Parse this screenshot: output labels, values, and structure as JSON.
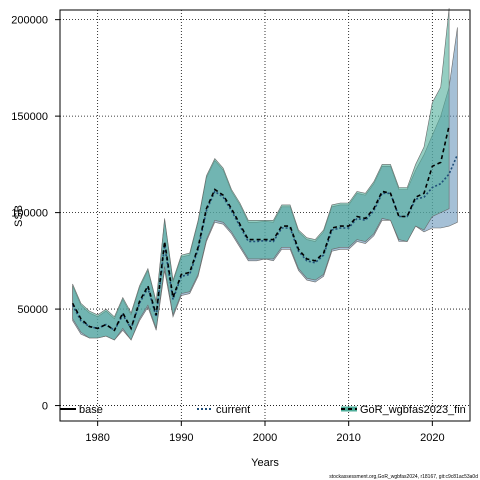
{
  "chart_data": {
    "type": "area",
    "xlabel": "Years",
    "ylabel": "SSB",
    "xlim": [
      1975.5,
      2024.5
    ],
    "ylim": [
      -8000,
      205000
    ],
    "x_ticks": [
      1980,
      1990,
      2000,
      2010,
      2020
    ],
    "x_tick_labels": [
      "1980",
      "1990",
      "2000",
      "2010",
      "2020"
    ],
    "y_ticks": [
      0,
      50000,
      100000,
      150000,
      200000
    ],
    "y_tick_labels": [
      "0",
      "50000",
      "100000",
      "150000",
      "200000"
    ],
    "grid": true,
    "legend_position": "bottom",
    "caption": "stockassessment.org,GoR_wgbfas2024, r18167, git:c9c81ac53a0d",
    "series": [
      {
        "name": "base",
        "color": "#000000",
        "line_style": "solid",
        "x": [],
        "y": [],
        "upper": [],
        "lower": []
      },
      {
        "name": "current",
        "color": "#1f4e79",
        "band_color": "#5b8db5",
        "line_style": "dotted",
        "x": [
          1977,
          1978,
          1979,
          1980,
          1981,
          1982,
          1983,
          1984,
          1985,
          1986,
          1987,
          1988,
          1989,
          1990,
          1991,
          1992,
          1993,
          1994,
          1995,
          1996,
          1997,
          1998,
          1999,
          2000,
          2001,
          2002,
          2003,
          2004,
          2005,
          2006,
          2007,
          2008,
          2009,
          2010,
          2011,
          2012,
          2013,
          2014,
          2015,
          2016,
          2017,
          2018,
          2019,
          2020,
          2021,
          2022,
          2023
        ],
        "y": [
          52000,
          44000,
          41000,
          40000,
          42000,
          39000,
          47000,
          40000,
          53000,
          61000,
          46000,
          83000,
          55000,
          67000,
          68000,
          81000,
          101000,
          111000,
          108000,
          101000,
          93000,
          85000,
          85000,
          85500,
          85000,
          92000,
          92000,
          80000,
          75000,
          74000,
          78000,
          91000,
          92000,
          92000,
          97000,
          96000,
          101000,
          110000,
          110000,
          98000,
          98000,
          107000,
          108000,
          113000,
          115000,
          120000,
          130000
        ],
        "upper": [
          62000,
          52000,
          48000,
          46000,
          49000,
          45000,
          55000,
          47000,
          61000,
          70000,
          53000,
          96000,
          64000,
          77000,
          78000,
          95000,
          118000,
          127000,
          122000,
          111000,
          104000,
          95000,
          95000,
          95500,
          95000,
          103000,
          103000,
          90000,
          86000,
          85000,
          90000,
          103000,
          104000,
          104000,
          110000,
          109000,
          115000,
          124000,
          124000,
          112000,
          112000,
          122000,
          130000,
          140000,
          150000,
          165000,
          196000
        ],
        "lower": [
          44000,
          37000,
          35000,
          35000,
          36000,
          34000,
          39000,
          34000,
          44000,
          51000,
          39000,
          70000,
          46000,
          57000,
          58000,
          67000,
          85000,
          95000,
          94000,
          89000,
          82000,
          75000,
          75000,
          76000,
          75000,
          81000,
          81000,
          70000,
          65000,
          64000,
          67000,
          80000,
          81000,
          81000,
          85000,
          84000,
          88000,
          96000,
          96000,
          85000,
          85000,
          93000,
          90000,
          92000,
          92000,
          93000,
          95000
        ]
      },
      {
        "name": "GoR_wgbfas2023_fin",
        "color": "#0d5c4a",
        "band_color": "#4fae9a",
        "line_style": "dashed",
        "x": [
          1977,
          1978,
          1979,
          1980,
          1981,
          1982,
          1983,
          1984,
          1985,
          1986,
          1987,
          1988,
          1989,
          1990,
          1991,
          1992,
          1993,
          1994,
          1995,
          1996,
          1997,
          1998,
          1999,
          2000,
          2001,
          2002,
          2003,
          2004,
          2005,
          2006,
          2007,
          2008,
          2009,
          2010,
          2011,
          2012,
          2013,
          2014,
          2015,
          2016,
          2017,
          2018,
          2019,
          2020,
          2021,
          2022
        ],
        "y": [
          53000,
          45000,
          41000,
          40000,
          42000,
          39000,
          48000,
          40000,
          54000,
          62000,
          47000,
          85000,
          56000,
          68000,
          69000,
          82000,
          102000,
          112000,
          109000,
          102000,
          94000,
          86000,
          86000,
          86000,
          86000,
          93000,
          93000,
          81000,
          76000,
          75000,
          79000,
          92000,
          93000,
          93000,
          98000,
          97000,
          102000,
          111000,
          110000,
          98000,
          98000,
          108000,
          110000,
          124000,
          126000,
          145000
        ],
        "upper": [
          63000,
          53000,
          49000,
          47000,
          50000,
          46000,
          56000,
          48000,
          62000,
          71000,
          54000,
          97000,
          65000,
          78000,
          79000,
          96000,
          119000,
          128000,
          123000,
          112000,
          105000,
          96000,
          96000,
          96000,
          96000,
          104000,
          104000,
          91000,
          87000,
          86000,
          91000,
          104000,
          105000,
          105000,
          111000,
          110000,
          116000,
          125000,
          125000,
          113000,
          113000,
          125000,
          134000,
          157000,
          165000,
          206000
        ],
        "lower": [
          45000,
          38000,
          35000,
          35000,
          36000,
          34000,
          40000,
          34000,
          45000,
          52000,
          40000,
          72000,
          47000,
          58000,
          59000,
          68000,
          86000,
          96000,
          95000,
          90000,
          83000,
          76000,
          76000,
          76000,
          76000,
          82000,
          82000,
          71000,
          66000,
          65000,
          68000,
          81000,
          82000,
          82000,
          86000,
          85000,
          89000,
          97000,
          96000,
          86000,
          85000,
          93000,
          91000,
          98000,
          100000,
          102000
        ]
      }
    ]
  }
}
